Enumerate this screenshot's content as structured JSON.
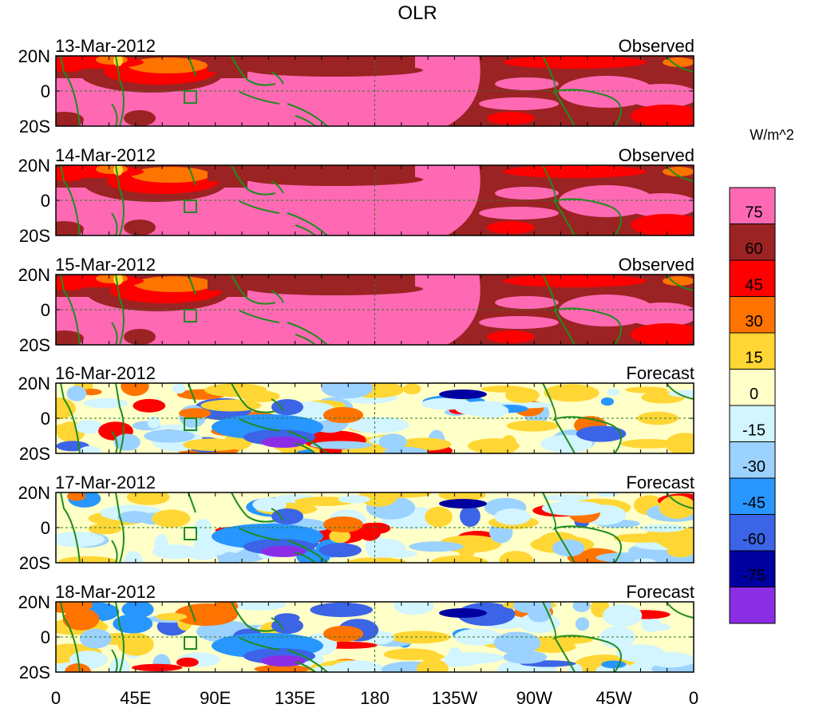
{
  "title": "OLR",
  "colorbar": {
    "unit_label": "W/m^2",
    "levels": [
      75,
      60,
      45,
      30,
      15,
      0,
      -15,
      -30,
      -45,
      -60,
      -75
    ],
    "colors": [
      "#ff69b4",
      "#9b2323",
      "#ff0000",
      "#ff7300",
      "#ffd634",
      "#ffffc8",
      "#d2f5ff",
      "#9cd2ff",
      "#2896ff",
      "#3c64e6",
      "#0000a0",
      "#8c2de6"
    ]
  },
  "x_ticks": [
    "0",
    "45E",
    "90E",
    "135E",
    "180",
    "135W",
    "90W",
    "45W",
    "0"
  ],
  "y_ticks": [
    "20N",
    "0",
    "20S"
  ],
  "chart_data": {
    "type": "heatmap",
    "title": "OLR",
    "xlim": [
      0,
      360
    ],
    "ylim": [
      -20,
      20
    ],
    "panels": [
      {
        "date": "13-Mar-2012",
        "kind": "Observed"
      },
      {
        "date": "14-Mar-2012",
        "kind": "Observed"
      },
      {
        "date": "15-Mar-2012",
        "kind": "Observed"
      },
      {
        "date": "16-Mar-2012",
        "kind": "Forecast"
      },
      {
        "date": "17-Mar-2012",
        "kind": "Forecast"
      },
      {
        "date": "18-Mar-2012",
        "kind": "Forecast"
      }
    ]
  }
}
